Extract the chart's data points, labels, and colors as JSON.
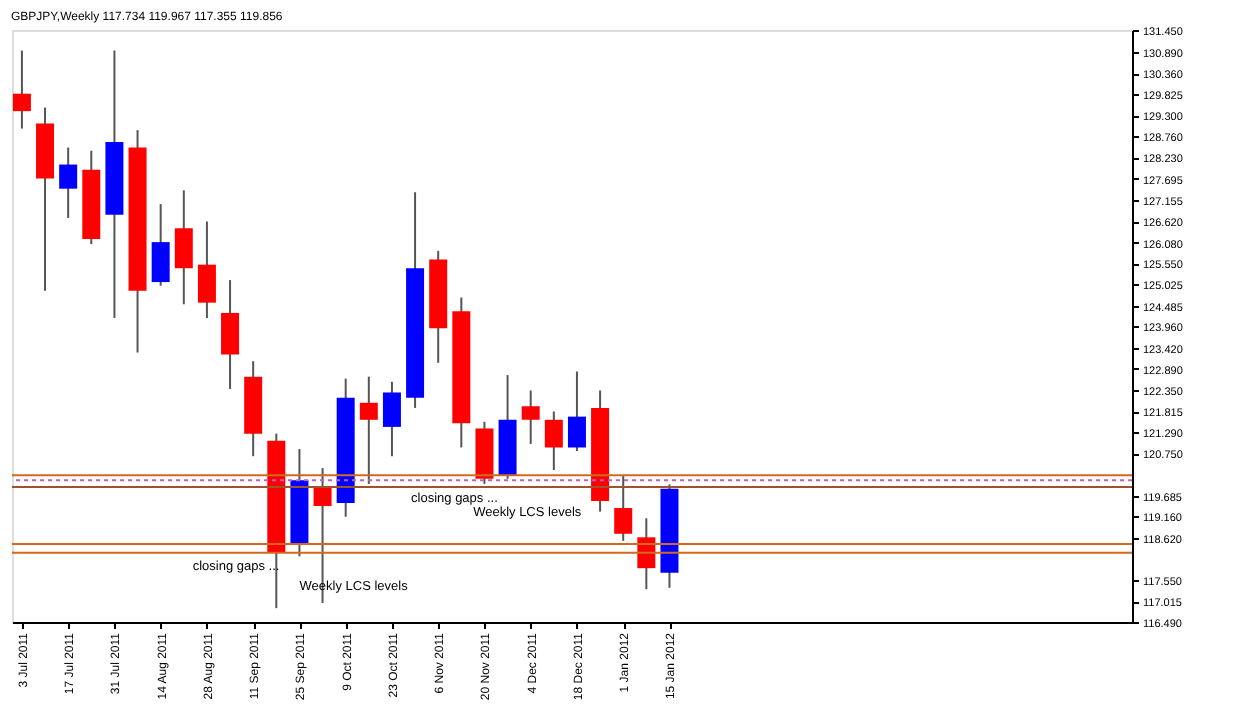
{
  "chart_data": {
    "type": "candlestick",
    "title": "GBPJPY,Weekly  117.734 119.967 117.355 119.856",
    "x": [
      "2011-07-03",
      "2011-07-10",
      "2011-07-17",
      "2011-07-24",
      "2011-07-31",
      "2011-08-07",
      "2011-08-14",
      "2011-08-21",
      "2011-08-28",
      "2011-09-04",
      "2011-09-11",
      "2011-09-18",
      "2011-09-25",
      "2011-10-02",
      "2011-10-09",
      "2011-10-16",
      "2011-10-23",
      "2011-10-30",
      "2011-11-06",
      "2011-11-13",
      "2011-11-20",
      "2011-11-27",
      "2011-12-04",
      "2011-12-11",
      "2011-12-18",
      "2011-12-25",
      "2012-01-01",
      "2012-01-08",
      "2012-01-15"
    ],
    "ohlc": [
      [
        129.84,
        130.93,
        128.96,
        129.4
      ],
      [
        129.09,
        129.49,
        124.86,
        127.7
      ],
      [
        127.44,
        128.48,
        126.7,
        128.05
      ],
      [
        127.92,
        128.4,
        126.04,
        126.17
      ],
      [
        126.78,
        130.93,
        124.17,
        128.62
      ],
      [
        128.48,
        128.92,
        123.3,
        124.86
      ],
      [
        125.08,
        127.05,
        124.99,
        126.09
      ],
      [
        126.44,
        127.4,
        124.52,
        125.43
      ],
      [
        125.52,
        126.61,
        124.17,
        124.56
      ],
      [
        124.3,
        125.13,
        122.38,
        123.25
      ],
      [
        122.69,
        123.08,
        120.68,
        121.25
      ],
      [
        121.07,
        121.25,
        116.84,
        118.24
      ],
      [
        118.46,
        120.86,
        118.15,
        120.07
      ],
      [
        119.9,
        120.38,
        116.97,
        119.42
      ],
      [
        119.5,
        122.64,
        119.15,
        122.16
      ],
      [
        122.03,
        122.69,
        119.98,
        121.6
      ],
      [
        121.42,
        122.56,
        120.68,
        122.29
      ],
      [
        122.16,
        127.35,
        121.9,
        125.43
      ],
      [
        125.65,
        125.87,
        123.04,
        123.91
      ],
      [
        124.34,
        124.69,
        120.9,
        121.51
      ],
      [
        121.38,
        121.55,
        119.98,
        120.11
      ],
      [
        120.2,
        122.73,
        120.11,
        121.6
      ],
      [
        121.94,
        122.34,
        120.99,
        121.6
      ],
      [
        121.6,
        121.81,
        120.33,
        120.9
      ],
      [
        120.9,
        122.82,
        120.81,
        121.68
      ],
      [
        121.9,
        122.34,
        119.28,
        119.55
      ],
      [
        119.37,
        120.2,
        118.54,
        118.72
      ],
      [
        118.63,
        119.11,
        117.32,
        117.85
      ],
      [
        117.734,
        119.967,
        117.355,
        119.856
      ]
    ],
    "colors": [
      "#ff0000",
      "#ff0000",
      "#0000ff",
      "#ff0000",
      "#0000ff",
      "#ff0000",
      "#0000ff",
      "#ff0000",
      "#ff0000",
      "#ff0000",
      "#ff0000",
      "#ff0000",
      "#0000ff",
      "#ff0000",
      "#0000ff",
      "#ff0000",
      "#0000ff",
      "#0000ff",
      "#ff0000",
      "#ff0000",
      "#ff0000",
      "#0000ff",
      "#ff0000",
      "#ff0000",
      "#0000ff",
      "#ff0000",
      "#ff0000",
      "#ff0000",
      "#0000ff"
    ],
    "xlim": [
      "2011-06-30",
      "2012-06-03"
    ],
    "xticks": [
      {
        "value": "2011-07-03",
        "label": "3 Jul 2011"
      },
      {
        "value": "2011-07-17",
        "label": "17 Jul 2011"
      },
      {
        "value": "2011-07-31",
        "label": "31 Jul 2011"
      },
      {
        "value": "2011-08-14",
        "label": "14 Aug 2011"
      },
      {
        "value": "2011-08-28",
        "label": "28 Aug 2011"
      },
      {
        "value": "2011-09-11",
        "label": "11 Sep 2011"
      },
      {
        "value": "2011-09-25",
        "label": "25 Sep 2011"
      },
      {
        "value": "2011-10-09",
        "label": "9 Oct 2011"
      },
      {
        "value": "2011-10-23",
        "label": "23 Oct 2011"
      },
      {
        "value": "2011-11-06",
        "label": "6 Nov 2011"
      },
      {
        "value": "2011-11-20",
        "label": "20 Nov 2011"
      },
      {
        "value": "2011-12-04",
        "label": "4 Dec 2011"
      },
      {
        "value": "2011-12-18",
        "label": "18 Dec 2011"
      },
      {
        "value": "2012-01-01",
        "label": "1 Jan 2012"
      },
      {
        "value": "2012-01-15",
        "label": "15 Jan 2012"
      }
    ],
    "ylim": [
      116.49,
      131.45
    ],
    "yticks": [
      {
        "value": 131.45,
        "label": "131.450"
      },
      {
        "value": 130.89,
        "label": "130.890"
      },
      {
        "value": 130.36,
        "label": "130.360"
      },
      {
        "value": 129.825,
        "label": "129.825"
      },
      {
        "value": 129.3,
        "label": "129.300"
      },
      {
        "value": 128.76,
        "label": "128.760"
      },
      {
        "value": 128.23,
        "label": "128.230"
      },
      {
        "value": 127.695,
        "label": "127.695"
      },
      {
        "value": 127.155,
        "label": "127.155"
      },
      {
        "value": 126.62,
        "label": "126.620"
      },
      {
        "value": 126.08,
        "label": "126.080"
      },
      {
        "value": 125.55,
        "label": "125.550"
      },
      {
        "value": 125.025,
        "label": "125.025"
      },
      {
        "value": 124.485,
        "label": "124.485"
      },
      {
        "value": 123.96,
        "label": "123.960"
      },
      {
        "value": 123.42,
        "label": "123.420"
      },
      {
        "value": 122.89,
        "label": "122.890"
      },
      {
        "value": 122.35,
        "label": "122.350"
      },
      {
        "value": 121.815,
        "label": "121.815"
      },
      {
        "value": 121.29,
        "label": "121.290"
      },
      {
        "value": 120.75,
        "label": "120.750"
      },
      {
        "value": 119.685,
        "label": "119.685"
      },
      {
        "value": 119.16,
        "label": "119.160"
      },
      {
        "value": 118.62,
        "label": "118.620"
      },
      {
        "value": 117.55,
        "label": "117.550"
      },
      {
        "value": 117.015,
        "label": "117.015"
      },
      {
        "value": 116.49,
        "label": "116.490"
      }
    ],
    "ref_lines": [
      {
        "axis": "y",
        "value": 120.2,
        "color": "#d2691e",
        "line_style": "solid"
      },
      {
        "axis": "y",
        "value": 120.07,
        "color": "#c060c0",
        "line_style": "dotted"
      },
      {
        "axis": "y",
        "value": 119.9,
        "color": "#a0522d",
        "line_style": "solid"
      },
      {
        "axis": "y",
        "value": 118.46,
        "color": "#d2691e",
        "line_style": "solid"
      },
      {
        "axis": "y",
        "value": 118.24,
        "color": "#d2691e",
        "line_style": "solid"
      }
    ],
    "annotations": [
      "closing gaps ...",
      "Weekly LCS levels",
      "closing gaps ...",
      "Weekly LCS levels"
    ],
    "grid": false
  }
}
